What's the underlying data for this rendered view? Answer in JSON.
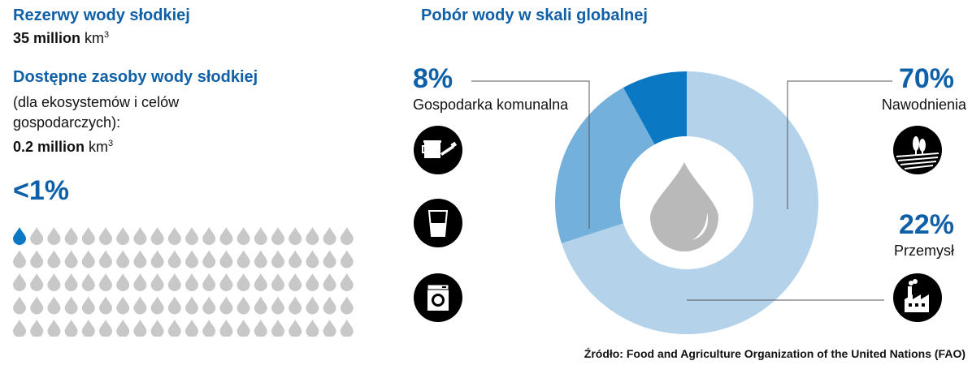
{
  "left": {
    "reserves_title": "Rezerwy wody słodkiej",
    "reserves_value": "35 million",
    "reserves_unit": "km",
    "reserves_unit_sup": "3",
    "available_title": "Dostępne zasoby wody słodkiej",
    "available_desc_1": "(dla ekosystemów i celów",
    "available_desc_2": "gospodarczych):",
    "available_value": "0.2 million",
    "available_unit": "km",
    "available_unit_sup": "3",
    "share_label": "<1%",
    "drops_total": 100,
    "drops_highlighted": 1
  },
  "right": {
    "title": "Pobór wody w skali globalnej",
    "source": "Źródło: Food and Agriculture Organization of the United Nations (FAO)"
  },
  "colors": {
    "title_blue": "#1060a8",
    "drop_grey": "#c8c8c8",
    "drop_blue": "#0a78c2",
    "irrigation": "#b4d3ea",
    "industry": "#74b0dc",
    "municipal": "#0a78c2",
    "center_drop": "#b9b9b9"
  },
  "icons": [
    "watering-can-icon",
    "glass-of-water-icon",
    "washing-machine-icon",
    "field-trees-icon",
    "factory-icon",
    "water-drop-icon"
  ],
  "chart_data": {
    "type": "pie",
    "title": "Pobór wody w skali globalnej",
    "donut": true,
    "series": [
      {
        "label": "Nawodnienia",
        "value": 70,
        "value_label": "70%",
        "color": "#b4d3ea"
      },
      {
        "label": "Przemysł",
        "value": 22,
        "value_label": "22%",
        "color": "#74b0dc"
      },
      {
        "label": "Gospodarka komunalna",
        "value": 8,
        "value_label": "8%",
        "color": "#0a78c2"
      }
    ]
  }
}
